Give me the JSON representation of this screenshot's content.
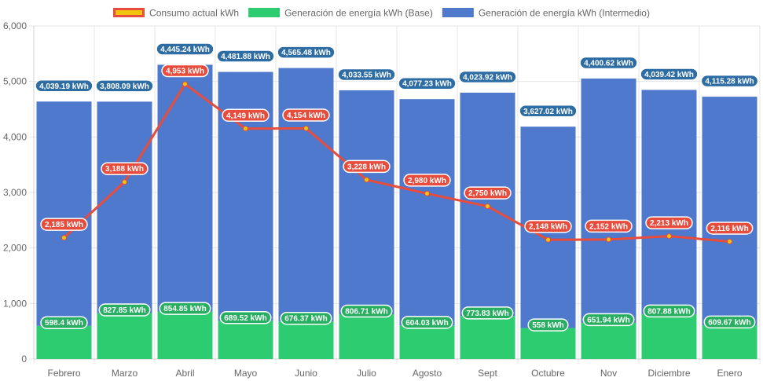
{
  "chart_data": {
    "type": "bar",
    "stacked": true,
    "categories": [
      "Febrero",
      "Marzo",
      "Abril",
      "Mayo",
      "Junio",
      "Julio",
      "Agosto",
      "Sept",
      "Octubre",
      "Nov",
      "Diciembre",
      "Enero"
    ],
    "ylim": [
      0,
      6000
    ],
    "yticks": [
      0,
      1000,
      2000,
      3000,
      4000,
      5000,
      6000
    ],
    "ytick_labels": [
      "0",
      "1,000",
      "2,000",
      "3,000",
      "4,000",
      "5,000",
      "6,000"
    ],
    "grid": true,
    "legend_position": "top",
    "unit_suffix": " kWh",
    "series": [
      {
        "name": "Consumo actual kWh",
        "kind": "line",
        "color": "#e74c3c",
        "legend_fill": "#f1c40f",
        "point_color": "#f1c40f",
        "values": [
          2185,
          3188,
          4953,
          4149,
          4154,
          3228,
          2980,
          2750,
          2148,
          2152,
          2213,
          2116
        ],
        "labels": [
          "2,185 kWh",
          "3,188 kWh",
          "4,953 kWh",
          "4,149 kWh",
          "4,154 kWh",
          "3,228 kWh",
          "2,980 kWh",
          "2,750 kWh",
          "2,148 kWh",
          "2,152 kWh",
          "2,213 kWh",
          "2,116 kWh"
        ]
      },
      {
        "name": "Generación de energía kWh (Base)",
        "kind": "bar",
        "color": "#2ecc71",
        "label_bg": "#27ae60",
        "values": [
          598.4,
          827.85,
          854.85,
          689.52,
          676.37,
          806.71,
          604.03,
          773.83,
          558,
          651.94,
          807.88,
          609.67
        ],
        "labels": [
          "598.4 kWh",
          "827.85 kWh",
          "854.85 kWh",
          "689.52 kWh",
          "676.37 kWh",
          "806.71 kWh",
          "604.03 kWh",
          "773.83 kWh",
          "558 kWh",
          "651.94 kWh",
          "807.88 kWh",
          "609.67 kWh"
        ]
      },
      {
        "name": "Generación de energía kWh (Intermedio)",
        "kind": "bar",
        "color": "#4e79cc",
        "label_bg": "#2e6da4",
        "values": [
          4039.19,
          3808.09,
          4445.24,
          4481.88,
          4565.48,
          4033.55,
          4077.23,
          4023.92,
          3627.02,
          4400.62,
          4039.42,
          4115.28
        ],
        "labels": [
          "4,039.19 kWh",
          "3,808.09 kWh",
          "4,445.24 kWh",
          "4,481.88 kWh",
          "4,565.48 kWh",
          "4,033.55 kWh",
          "4,077.23 kWh",
          "4,023.92 kWh",
          "3,627.02 kWh",
          "4,400.62 kWh",
          "4,039.42 kWh",
          "4,115.28 kWh"
        ]
      }
    ]
  }
}
